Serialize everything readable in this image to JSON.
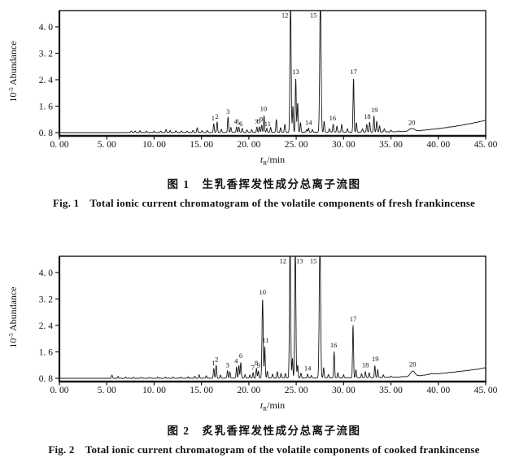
{
  "page": {
    "background": "#ffffff",
    "ink": "#161616"
  },
  "captions": [
    {
      "zh": "图 1　生乳香挥发性成分总离子流图",
      "en": "Fig. 1　Total ionic current chromatogram of the volatile components of fresh frankincense"
    },
    {
      "zh": "图 2　炙乳香挥发性成分总离子流图",
      "en": "Fig. 2　Total ionic current chromatogram of the volatile components of cooked frankincense"
    }
  ],
  "chart_data": [
    {
      "type": "line",
      "title": "Total ionic current chromatogram of the volatile components of fresh frankincense",
      "xlabel": "tR/min",
      "xlabel_parts": {
        "var": "t",
        "sub": "R",
        "rest": "/min"
      },
      "ylabel": "10^-5 Abundance",
      "ylabel_parts": {
        "base": "10",
        "exp": "-5",
        "rest": " Abundance"
      },
      "xlim": [
        0,
        45
      ],
      "ylim": [
        0.8,
        4.45
      ],
      "grid": false,
      "xticks": {
        "values": [
          0,
          5,
          10,
          15,
          20,
          25,
          30,
          35,
          40,
          45
        ],
        "labels": [
          "0. 00",
          "5. 00",
          "10. 00",
          "15. 00",
          "20. 00",
          "25. 00",
          "30. 00",
          "35. 00",
          "40. 00",
          "45. 00"
        ]
      },
      "yticks": {
        "values": [
          0.8,
          1.6,
          2.4,
          3.2,
          4.0
        ],
        "labels": [
          "0. 8",
          "1. 6",
          "2. 4",
          "3. 2",
          "4. 0"
        ]
      },
      "offscale_note": "peaks 12 and 15 exceed the y-axis maximum and are clipped at the plot top",
      "baseline": [
        [
          0,
          0.8
        ],
        [
          6,
          0.8
        ],
        [
          16,
          0.805
        ],
        [
          24,
          0.81
        ],
        [
          30,
          0.815
        ],
        [
          34,
          0.82
        ],
        [
          36,
          0.83
        ],
        [
          38,
          0.86
        ],
        [
          40,
          0.92
        ],
        [
          42,
          1.0
        ],
        [
          43.5,
          1.08
        ],
        [
          45,
          1.17
        ]
      ],
      "peaks": [
        [
          7.6,
          0.86
        ],
        [
          8.0,
          0.855
        ],
        [
          8.5,
          0.86
        ],
        [
          9.2,
          0.845
        ],
        [
          10.0,
          0.845
        ],
        [
          10.7,
          0.845
        ],
        [
          11.25,
          0.9
        ],
        [
          11.7,
          0.865
        ],
        [
          12.3,
          0.855
        ],
        [
          12.9,
          0.85
        ],
        [
          13.5,
          0.85
        ],
        [
          14.1,
          0.87
        ],
        [
          14.55,
          0.95
        ],
        [
          15.05,
          0.865
        ],
        [
          15.6,
          0.87
        ],
        [
          16.3,
          1.07
        ],
        [
          16.65,
          1.12
        ],
        [
          17.1,
          0.9
        ],
        [
          17.8,
          1.27
        ],
        [
          18.1,
          0.96
        ],
        [
          18.7,
          0.98
        ],
        [
          18.95,
          0.96
        ],
        [
          19.3,
          0.93
        ],
        [
          19.8,
          0.885
        ],
        [
          20.3,
          0.89
        ],
        [
          20.85,
          0.96
        ],
        [
          21.1,
          0.98
        ],
        [
          21.35,
          1.03
        ],
        [
          21.6,
          1.3
        ],
        [
          21.9,
          0.94
        ],
        [
          22.3,
          0.96
        ],
        [
          22.9,
          1.2
        ],
        [
          23.35,
          0.95
        ],
        [
          23.8,
          1.06
        ],
        [
          24.4,
          5.0,
          0.06
        ],
        [
          24.65,
          1.6
        ],
        [
          24.95,
          2.45
        ],
        [
          25.15,
          1.7
        ],
        [
          25.45,
          1.1
        ],
        [
          26.1,
          0.9
        ],
        [
          26.3,
          0.94
        ],
        [
          26.7,
          0.89
        ],
        [
          27.55,
          5.0,
          0.07
        ],
        [
          27.95,
          1.15
        ],
        [
          28.5,
          0.92
        ],
        [
          28.9,
          1.06
        ],
        [
          29.3,
          1.0
        ],
        [
          29.8,
          1.05
        ],
        [
          30.4,
          0.92
        ],
        [
          31.05,
          2.45
        ],
        [
          31.35,
          1.1
        ],
        [
          32.0,
          0.92
        ],
        [
          32.45,
          1.05
        ],
        [
          32.75,
          1.12
        ],
        [
          33.2,
          1.3
        ],
        [
          33.5,
          1.15
        ],
        [
          33.8,
          1.0
        ],
        [
          34.3,
          0.92
        ],
        [
          35.0,
          0.88
        ],
        [
          35.8,
          0.86
        ],
        [
          37.2,
          0.93,
          0.25
        ]
      ],
      "peak_labels": [
        {
          "n": "1",
          "t": 16.22,
          "v": 1.17
        },
        {
          "n": "2",
          "t": 16.62,
          "v": 1.22
        },
        {
          "n": "3",
          "t": 17.8,
          "v": 1.37
        },
        {
          "n": "4",
          "t": 18.6,
          "v": 1.07
        },
        {
          "n": "5",
          "t": 18.88,
          "v": 1.05
        },
        {
          "n": "6",
          "t": 19.18,
          "v": 1.0
        },
        {
          "n": "7",
          "t": 20.78,
          "v": 1.06
        },
        {
          "n": "8",
          "t": 21.02,
          "v": 1.07
        },
        {
          "n": "9",
          "t": 21.3,
          "v": 1.13
        },
        {
          "n": "10",
          "t": 21.55,
          "v": 1.45
        },
        {
          "n": "11",
          "t": 21.98,
          "v": 1.0
        },
        {
          "n": "12",
          "t": 23.8,
          "v": 4.28
        },
        {
          "n": "13",
          "t": 24.95,
          "v": 2.57
        },
        {
          "n": "14",
          "t": 26.3,
          "v": 1.03
        },
        {
          "n": "15",
          "t": 26.8,
          "v": 4.28
        },
        {
          "n": "16",
          "t": 28.85,
          "v": 1.17
        },
        {
          "n": "17",
          "t": 31.05,
          "v": 2.57
        },
        {
          "n": "18",
          "t": 32.5,
          "v": 1.22
        },
        {
          "n": "19",
          "t": 33.25,
          "v": 1.42
        },
        {
          "n": "20",
          "t": 37.2,
          "v": 1.04
        }
      ]
    },
    {
      "type": "line",
      "title": "Total ionic current chromatogram of the volatile components of cooked frankincense",
      "xlabel": "tR/min",
      "xlabel_parts": {
        "var": "t",
        "sub": "R",
        "rest": "/min"
      },
      "ylabel": "10^-5 Abundance",
      "ylabel_parts": {
        "base": "10",
        "exp": "-5",
        "rest": " Abundance"
      },
      "xlim": [
        0,
        45
      ],
      "ylim": [
        0.8,
        4.45
      ],
      "grid": false,
      "xticks": {
        "values": [
          0,
          5,
          10,
          15,
          20,
          25,
          30,
          35,
          40,
          45
        ],
        "labels": [
          "0. 00",
          "5. 00",
          "10. 00",
          "15. 00",
          "20. 00",
          "25. 00",
          "30. 00",
          "35. 00",
          "40. 00",
          "45. 00"
        ]
      },
      "yticks": {
        "values": [
          0.8,
          1.6,
          2.4,
          3.2,
          4.0
        ],
        "labels": [
          "0. 8",
          "1. 6",
          "2. 4",
          "3. 2",
          "4. 0"
        ]
      },
      "offscale_note": "peaks 12, 13 and 15 exceed the y-axis maximum and are clipped at the plot top",
      "baseline": [
        [
          0,
          0.8
        ],
        [
          6,
          0.8
        ],
        [
          16,
          0.805
        ],
        [
          24,
          0.81
        ],
        [
          30,
          0.815
        ],
        [
          34,
          0.825
        ],
        [
          36,
          0.84
        ],
        [
          38,
          0.88
        ],
        [
          40,
          0.94
        ],
        [
          42,
          1.0
        ],
        [
          44,
          1.07
        ],
        [
          45,
          1.12
        ]
      ],
      "peaks": [
        [
          5.55,
          0.9
        ],
        [
          6.2,
          0.86
        ],
        [
          7.0,
          0.84
        ],
        [
          7.8,
          0.835
        ],
        [
          8.6,
          0.835
        ],
        [
          9.5,
          0.835
        ],
        [
          10.4,
          0.84
        ],
        [
          11.2,
          0.84
        ],
        [
          12.0,
          0.84
        ],
        [
          12.8,
          0.84
        ],
        [
          13.6,
          0.85
        ],
        [
          14.3,
          0.86
        ],
        [
          14.75,
          0.9
        ],
        [
          15.5,
          0.88
        ],
        [
          16.3,
          1.1
        ],
        [
          16.55,
          1.2
        ],
        [
          17.0,
          0.9
        ],
        [
          17.75,
          1.04
        ],
        [
          18.0,
          0.99
        ],
        [
          18.7,
          1.15
        ],
        [
          18.95,
          1.18
        ],
        [
          19.15,
          1.28
        ],
        [
          19.6,
          0.92
        ],
        [
          20.1,
          0.9
        ],
        [
          20.45,
          0.97
        ],
        [
          20.8,
          1.1
        ],
        [
          21.0,
          1.02
        ],
        [
          21.45,
          3.2,
          0.06
        ],
        [
          21.68,
          1.75
        ],
        [
          21.95,
          1.02
        ],
        [
          22.5,
          0.93
        ],
        [
          23.0,
          1.0
        ],
        [
          23.4,
          0.95
        ],
        [
          23.85,
          0.95
        ],
        [
          24.35,
          5.0,
          0.06
        ],
        [
          24.6,
          1.4
        ],
        [
          24.9,
          5.0,
          0.06
        ],
        [
          25.15,
          1.2
        ],
        [
          25.5,
          0.96
        ],
        [
          26.2,
          0.93
        ],
        [
          26.6,
          0.89
        ],
        [
          27.5,
          5.0,
          0.07
        ],
        [
          27.9,
          1.12
        ],
        [
          28.4,
          0.92
        ],
        [
          29.0,
          1.6
        ],
        [
          29.4,
          0.97
        ],
        [
          30.0,
          0.9
        ],
        [
          31.0,
          2.4
        ],
        [
          31.3,
          1.06
        ],
        [
          31.9,
          0.93
        ],
        [
          32.3,
          1.0
        ],
        [
          32.7,
          0.97
        ],
        [
          33.3,
          1.18
        ],
        [
          33.6,
          1.06
        ],
        [
          34.2,
          0.9
        ],
        [
          35.0,
          0.87
        ],
        [
          36.2,
          0.86
        ],
        [
          37.3,
          1.02,
          0.22
        ],
        [
          39.3,
          0.94,
          0.3
        ]
      ],
      "peak_labels": [
        {
          "n": "1",
          "t": 16.25,
          "v": 1.2
        },
        {
          "n": "2",
          "t": 16.6,
          "v": 1.3
        },
        {
          "n": "3",
          "t": 17.75,
          "v": 1.13
        },
        {
          "n": "4",
          "t": 18.65,
          "v": 1.26
        },
        {
          "n": "6",
          "t": 19.15,
          "v": 1.42
        },
        {
          "n": "7",
          "t": 20.42,
          "v": 1.06
        },
        {
          "n": "8",
          "t": 20.78,
          "v": 1.2
        },
        {
          "n": "9",
          "t": 21.02,
          "v": 1.12
        },
        {
          "n": "10",
          "t": 21.45,
          "v": 3.34
        },
        {
          "n": "11",
          "t": 21.75,
          "v": 1.88
        },
        {
          "n": "12",
          "t": 23.6,
          "v": 4.28
        },
        {
          "n": "13",
          "t": 25.35,
          "v": 4.28
        },
        {
          "n": "14",
          "t": 26.2,
          "v": 1.03
        },
        {
          "n": "15",
          "t": 26.8,
          "v": 4.28
        },
        {
          "n": "16",
          "t": 28.95,
          "v": 1.73
        },
        {
          "n": "17",
          "t": 31.0,
          "v": 2.52
        },
        {
          "n": "18",
          "t": 32.3,
          "v": 1.13
        },
        {
          "n": "19",
          "t": 33.35,
          "v": 1.32
        },
        {
          "n": "20",
          "t": 37.3,
          "v": 1.16
        }
      ]
    }
  ]
}
